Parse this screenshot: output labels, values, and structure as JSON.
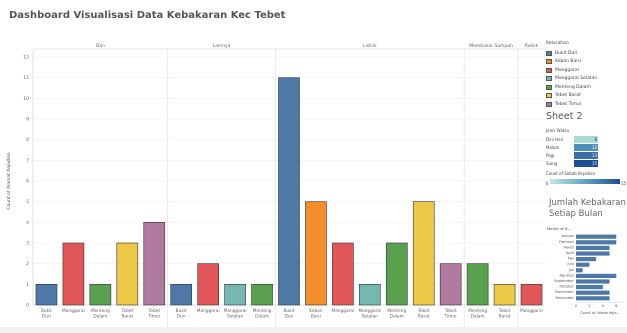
{
  "title": "Dashboard Visualisasi Data Kebakaran Kec Tebet",
  "colors": {
    "Bukit Duri": "#4e79a7",
    "Kebon Baru": "#f28e2b",
    "Manggarai": "#e15759",
    "Manggarai Selatan": "#76b7b2",
    "Menteng Dalam": "#59a14f",
    "Tebet Barat": "#edc948",
    "Tebet Timur": "#b07aa1"
  },
  "chart_data": {
    "type": "bar",
    "ylabel": "Count of Alamat Kejadian",
    "ylim": [
      0,
      12
    ],
    "y_ticks": [
      "0",
      "1",
      "2",
      "3",
      "4",
      "5",
      "6",
      "7",
      "8",
      "9",
      "10",
      "11",
      "12"
    ],
    "groups": [
      {
        "name": "Dan",
        "bars": [
          {
            "category": "Bukit Duri",
            "value": 1
          },
          {
            "category": "Manggarai",
            "value": 3
          },
          {
            "category": "Menteng Dalam",
            "value": 1
          },
          {
            "category": "Tebet Barat",
            "value": 3
          },
          {
            "category": "Tebet Timur",
            "value": 4
          }
        ]
      },
      {
        "name": "Lainnya",
        "bars": [
          {
            "category": "Bukit Duri",
            "value": 1
          },
          {
            "category": "Manggarai",
            "value": 2
          },
          {
            "category": "Manggarai Selatan",
            "value": 1
          },
          {
            "category": "Menteng Dalam",
            "value": 1
          }
        ]
      },
      {
        "name": "Listrik",
        "bars": [
          {
            "category": "Bukit Duri",
            "value": 11
          },
          {
            "category": "Kebon Baru",
            "value": 5
          },
          {
            "category": "Manggarai",
            "value": 3
          },
          {
            "category": "Manggarai Selatan",
            "value": 1
          },
          {
            "category": "Menteng Dalam",
            "value": 3
          },
          {
            "category": "Tebet Barat",
            "value": 5
          },
          {
            "category": "Tebet Timur",
            "value": 2
          }
        ]
      },
      {
        "name": "Membakar Sampah",
        "bars": [
          {
            "category": "Menteng Dalam",
            "value": 2
          },
          {
            "category": "Tebet Barat",
            "value": 1
          }
        ]
      },
      {
        "name": "Rokok",
        "bars": [
          {
            "category": "Manggarai",
            "value": 1
          }
        ]
      }
    ]
  },
  "legend": {
    "title": "Kelurahan",
    "items": [
      "Bukit Duri",
      "Kebon Baru",
      "Manggarai",
      "Manggarai Selatan",
      "Menteng Dalam",
      "Tebet Barat",
      "Tebet Timur"
    ]
  },
  "sheet2": {
    "title": "Sheet 2",
    "header": "Jenis Waktu",
    "rows": [
      {
        "label": "Dini Hari",
        "value": "6",
        "color": "#a9d9d3"
      },
      {
        "label": "Malam",
        "value": "12",
        "color": "#4f8fb8"
      },
      {
        "label": "Pagi",
        "value": "13",
        "color": "#3a6ea5"
      },
      {
        "label": "Siang",
        "value": "15",
        "color": "#1f4e8c"
      }
    ],
    "gradient_title": "Count of Sebab Kejadian",
    "gradient_min": "6",
    "gradient_max": "15"
  },
  "monthly": {
    "title": "Jumlah Kebakaran Setiap Bulan",
    "axis_title": "Month of B...",
    "xlabel": "Count of Sebab Keja..",
    "x_ticks": [
      "0",
      "2",
      "4",
      "6"
    ],
    "months": [
      "Januari",
      "Februari",
      "Maret",
      "April",
      "Mei",
      "Juni",
      "Juli",
      "Agustus",
      "September",
      "Oktober",
      "November",
      "Desember"
    ],
    "values": [
      6,
      6,
      5,
      5,
      3,
      2,
      1,
      6,
      5,
      4,
      5,
      5
    ],
    "xlim": [
      0,
      7
    ],
    "bar_color": "#4e79a7"
  }
}
